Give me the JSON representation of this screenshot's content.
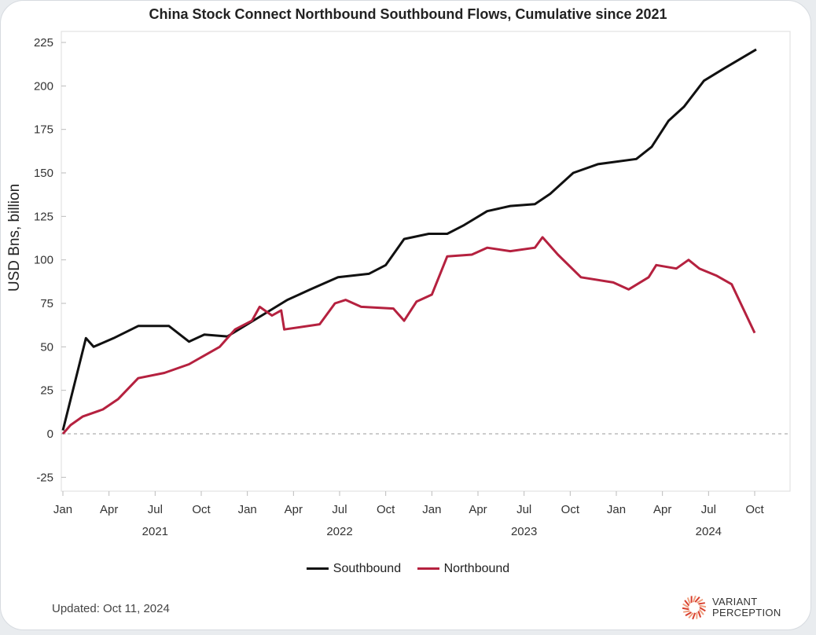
{
  "chart_data": {
    "type": "line",
    "title": "China Stock Connect Northbound Southbound Flows, Cumulative since 2021",
    "ylabel": "USD Bns, billion",
    "xlabel": "",
    "ylim": [
      -30,
      230
    ],
    "yticks": [
      -25,
      0,
      25,
      50,
      75,
      100,
      125,
      150,
      175,
      200,
      225
    ],
    "x_unit": "months since Jan 2021",
    "xticks": [
      {
        "m": 0,
        "label": "Jan"
      },
      {
        "m": 3,
        "label": "Apr"
      },
      {
        "m": 6,
        "label": "Jul"
      },
      {
        "m": 9,
        "label": "Oct"
      },
      {
        "m": 12,
        "label": "Jan"
      },
      {
        "m": 15,
        "label": "Apr"
      },
      {
        "m": 18,
        "label": "Jul"
      },
      {
        "m": 21,
        "label": "Oct"
      },
      {
        "m": 24,
        "label": "Jan"
      },
      {
        "m": 27,
        "label": "Apr"
      },
      {
        "m": 30,
        "label": "Jul"
      },
      {
        "m": 33,
        "label": "Oct"
      },
      {
        "m": 36,
        "label": "Jan"
      },
      {
        "m": 39,
        "label": "Apr"
      },
      {
        "m": 42,
        "label": "Jul"
      },
      {
        "m": 45,
        "label": "Oct"
      }
    ],
    "years": [
      {
        "m": 6,
        "label": "2021"
      },
      {
        "m": 18,
        "label": "2022"
      },
      {
        "m": 30,
        "label": "2023"
      },
      {
        "m": 42,
        "label": "2024"
      }
    ],
    "legend_position": "bottom",
    "series": [
      {
        "name": "Southbound",
        "color": "#111111",
        "points": [
          [
            0,
            2
          ],
          [
            1.5,
            55
          ],
          [
            2,
            50
          ],
          [
            3.3,
            55
          ],
          [
            4.9,
            62
          ],
          [
            6.9,
            62
          ],
          [
            8.2,
            53
          ],
          [
            9.2,
            57
          ],
          [
            10.7,
            56
          ],
          [
            12,
            63
          ],
          [
            13.3,
            70
          ],
          [
            14.6,
            77
          ],
          [
            16.1,
            83
          ],
          [
            17.9,
            90
          ],
          [
            19.9,
            92
          ],
          [
            21,
            97
          ],
          [
            22.2,
            112
          ],
          [
            23.8,
            115
          ],
          [
            25,
            115
          ],
          [
            26.1,
            120
          ],
          [
            27.6,
            128
          ],
          [
            29.1,
            131
          ],
          [
            30.7,
            132
          ],
          [
            31.7,
            138
          ],
          [
            33.2,
            150
          ],
          [
            34.8,
            155
          ],
          [
            37.3,
            158
          ],
          [
            38.3,
            165
          ],
          [
            39.4,
            180
          ],
          [
            40.4,
            188
          ],
          [
            41.7,
            203
          ],
          [
            43,
            210
          ],
          [
            45.1,
            221
          ]
        ]
      },
      {
        "name": "Northbound",
        "color": "#b5213f",
        "points": [
          [
            0,
            0
          ],
          [
            0.5,
            5
          ],
          [
            1.3,
            10
          ],
          [
            2.6,
            14
          ],
          [
            3.6,
            20
          ],
          [
            4.9,
            32
          ],
          [
            6.6,
            35
          ],
          [
            8.2,
            40
          ],
          [
            9.2,
            45
          ],
          [
            10.2,
            50
          ],
          [
            11.2,
            60
          ],
          [
            12.3,
            65
          ],
          [
            12.8,
            73
          ],
          [
            13.6,
            68
          ],
          [
            14.2,
            71
          ],
          [
            14.4,
            60
          ],
          [
            16.7,
            63
          ],
          [
            17.7,
            75
          ],
          [
            18.4,
            77
          ],
          [
            19.4,
            73
          ],
          [
            21.5,
            72
          ],
          [
            22.2,
            65
          ],
          [
            23,
            76
          ],
          [
            24,
            80
          ],
          [
            25,
            102
          ],
          [
            26.6,
            103
          ],
          [
            27.6,
            107
          ],
          [
            29.1,
            105
          ],
          [
            30.7,
            107
          ],
          [
            31.2,
            113
          ],
          [
            32.2,
            103
          ],
          [
            33.7,
            90
          ],
          [
            35.8,
            87
          ],
          [
            36.8,
            83
          ],
          [
            38.1,
            90
          ],
          [
            38.6,
            97
          ],
          [
            39.9,
            95
          ],
          [
            40.7,
            100
          ],
          [
            41.4,
            95
          ],
          [
            42.5,
            91
          ],
          [
            43.5,
            86
          ],
          [
            45,
            58
          ]
        ]
      }
    ]
  },
  "footer": {
    "updated": "Updated: Oct 11, 2024",
    "logo_line1": "VARIANT",
    "logo_line2": "PERCEPTION"
  }
}
